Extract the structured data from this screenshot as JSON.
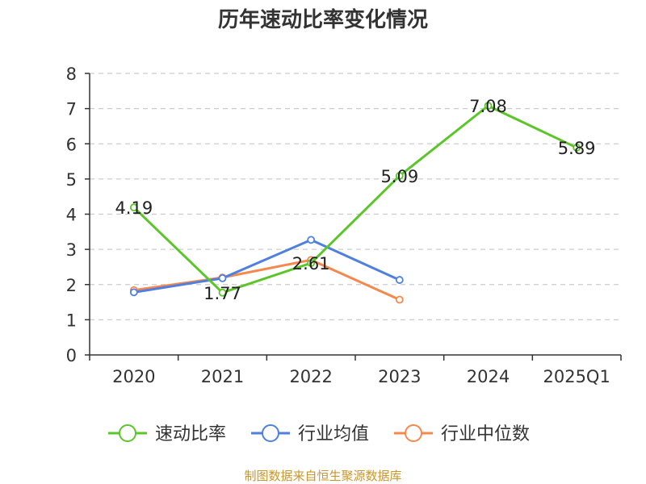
{
  "chart_data": {
    "type": "line",
    "title": "历年速动比率变化情况",
    "categories": [
      "2020",
      "2021",
      "2022",
      "2023",
      "2024",
      "2025Q1"
    ],
    "ylim": [
      0,
      8
    ],
    "yticks": [
      0,
      1,
      2,
      3,
      4,
      5,
      6,
      7,
      8
    ],
    "grid": true,
    "legend_position": "bottom-center",
    "series": [
      {
        "name": "速动比率",
        "color": "#5cc52a",
        "values": [
          4.19,
          1.77,
          2.61,
          5.09,
          7.08,
          5.89
        ],
        "labels": [
          "4.19",
          "1.77",
          "2.61",
          "5.09",
          "7.08",
          "5.89"
        ]
      },
      {
        "name": "行业均值",
        "color": "#4f7fe0",
        "values": [
          1.78,
          2.18,
          3.27,
          2.13,
          null,
          null
        ]
      },
      {
        "name": "行业中位数",
        "color": "#f5894d",
        "values": [
          1.84,
          2.2,
          2.7,
          1.57,
          null,
          null
        ]
      }
    ]
  },
  "source": "制图数据来自恒生聚源数据库"
}
